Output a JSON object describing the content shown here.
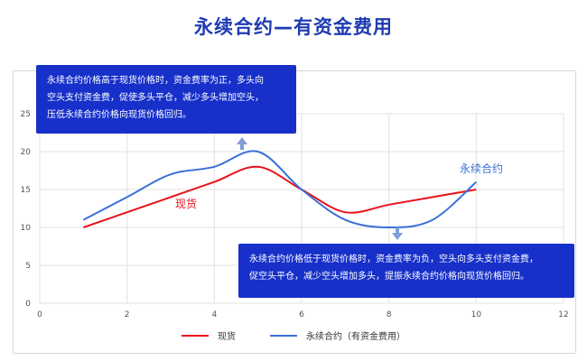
{
  "title": "永续合约—有资金费用",
  "colors": {
    "title": "#1f3bb3",
    "callout_bg": "#1730c9",
    "spot": "#e8131b",
    "perp": "#3a6fd8",
    "grid": "#e1e1e1",
    "axis_text": "#555555",
    "arrow": "#7f9ed8"
  },
  "annotations": {
    "top": [
      "永续合约价格高于现货价格时，资金费率为正，多头向",
      "空头支付资金费，促使多头平仓，减少多头增加空头，",
      "压低永续合约价格向现货价格回归。"
    ],
    "bottom": [
      "永续合约价格低于现货价格时，资金费率为负，空头向多头支付资金费，",
      "促空头平仓，减少空头增加多头，提振永续合约价格向现货价格回归。"
    ]
  },
  "labels": {
    "spot": "现货",
    "perp": "永续合约"
  },
  "chart_data": {
    "type": "line",
    "xlim": [
      0,
      12
    ],
    "ylim": [
      0,
      25
    ],
    "xticks": [
      0,
      2,
      4,
      6,
      8,
      10,
      12
    ],
    "yticks": [
      0,
      5,
      10,
      15,
      20,
      25
    ],
    "grid": true,
    "legend_position": "bottom",
    "series": [
      {
        "name": "现货",
        "color": "#e8131b",
        "x": [
          1,
          2,
          3,
          4,
          5,
          6,
          7,
          8,
          9,
          10
        ],
        "y": [
          10,
          12,
          14,
          16,
          18,
          15,
          12,
          13,
          14,
          15
        ]
      },
      {
        "name": "永续合约（有资金费用）",
        "color": "#3a6fd8",
        "x": [
          1,
          2,
          3,
          4,
          5,
          6,
          7,
          8,
          9,
          10
        ],
        "y": [
          11,
          14,
          17,
          18,
          20,
          15,
          11,
          10,
          11,
          16
        ]
      }
    ]
  }
}
